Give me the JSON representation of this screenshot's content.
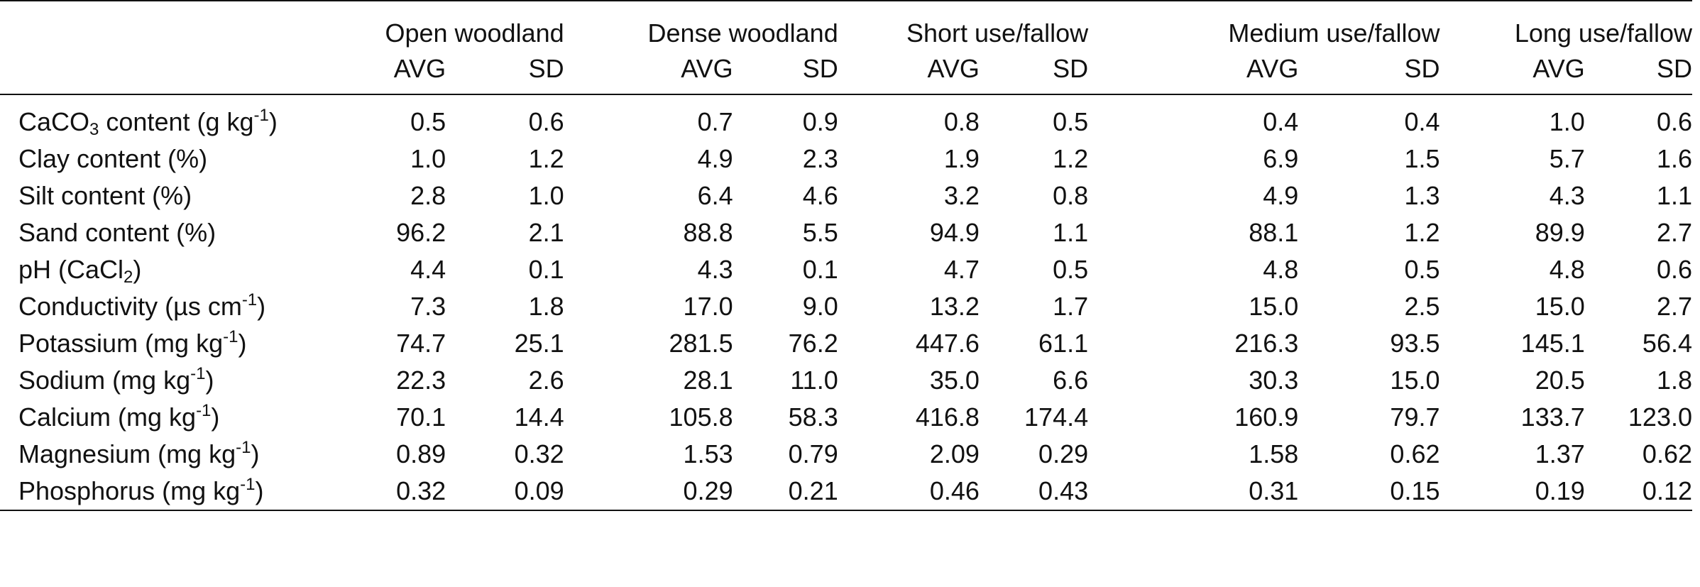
{
  "table": {
    "groups": [
      "Open woodland",
      "Dense woodland",
      "Short use/fallow",
      "Medium use/fallow",
      "Long use/fallow"
    ],
    "stats": [
      "AVG",
      "SD"
    ],
    "rows": [
      {
        "label": {
          "pre": "CaCO",
          "sub": "3",
          "mid": " content (g kg",
          "sup": "-1",
          "post": ")"
        },
        "values": [
          "0.5",
          "0.6",
          "0.7",
          "0.9",
          "0.8",
          "0.5",
          "0.4",
          "0.4",
          "1.0",
          "0.6"
        ]
      },
      {
        "label": {
          "pre": "Clay content (%)",
          "sub": "",
          "mid": "",
          "sup": "",
          "post": ""
        },
        "values": [
          "1.0",
          "1.2",
          "4.9",
          "2.3",
          "1.9",
          "1.2",
          "6.9",
          "1.5",
          "5.7",
          "1.6"
        ]
      },
      {
        "label": {
          "pre": "Silt content (%)",
          "sub": "",
          "mid": "",
          "sup": "",
          "post": ""
        },
        "values": [
          "2.8",
          "1.0",
          "6.4",
          "4.6",
          "3.2",
          "0.8",
          "4.9",
          "1.3",
          "4.3",
          "1.1"
        ]
      },
      {
        "label": {
          "pre": "Sand content (%)",
          "sub": "",
          "mid": "",
          "sup": "",
          "post": ""
        },
        "values": [
          "96.2",
          "2.1",
          "88.8",
          "5.5",
          "94.9",
          "1.1",
          "88.1",
          "1.2",
          "89.9",
          "2.7"
        ]
      },
      {
        "label": {
          "pre": "pH (CaCl",
          "sub": "2",
          "mid": ")",
          "sup": "",
          "post": ""
        },
        "values": [
          "4.4",
          "0.1",
          "4.3",
          "0.1",
          "4.7",
          "0.5",
          "4.8",
          "0.5",
          "4.8",
          "0.6"
        ]
      },
      {
        "label": {
          "pre": "Conductivity (µs cm",
          "sub": "",
          "mid": "",
          "sup": "-1",
          "post": ")"
        },
        "values": [
          "7.3",
          "1.8",
          "17.0",
          "9.0",
          "13.2",
          "1.7",
          "15.0",
          "2.5",
          "15.0",
          "2.7"
        ]
      },
      {
        "label": {
          "pre": "Potassium (mg kg",
          "sub": "",
          "mid": "",
          "sup": "-1",
          "post": ")"
        },
        "values": [
          "74.7",
          "25.1",
          "281.5",
          "76.2",
          "447.6",
          "61.1",
          "216.3",
          "93.5",
          "145.1",
          "56.4"
        ]
      },
      {
        "label": {
          "pre": "Sodium (mg kg",
          "sub": "",
          "mid": "",
          "sup": "-1",
          "post": ")"
        },
        "values": [
          "22.3",
          "2.6",
          "28.1",
          "11.0",
          "35.0",
          "6.6",
          "30.3",
          "15.0",
          "20.5",
          "1.8"
        ]
      },
      {
        "label": {
          "pre": "Calcium (mg kg",
          "sub": "",
          "mid": "",
          "sup": "-1",
          "post": ")"
        },
        "values": [
          "70.1",
          "14.4",
          "105.8",
          "58.3",
          "416.8",
          "174.4",
          "160.9",
          "79.7",
          "133.7",
          "123.0"
        ]
      },
      {
        "label": {
          "pre": "Magnesium (mg kg",
          "sub": "",
          "mid": "",
          "sup": "-1",
          "post": ")"
        },
        "values": [
          "0.89",
          "0.32",
          "1.53",
          "0.79",
          "2.09",
          "0.29",
          "1.58",
          "0.62",
          "1.37",
          "0.62"
        ]
      },
      {
        "label": {
          "pre": "Phosphorus (mg kg",
          "sub": "",
          "mid": "",
          "sup": "-1",
          "post": ")"
        },
        "values": [
          "0.32",
          "0.09",
          "0.29",
          "0.21",
          "0.46",
          "0.43",
          "0.31",
          "0.15",
          "0.19",
          "0.12"
        ]
      }
    ]
  }
}
